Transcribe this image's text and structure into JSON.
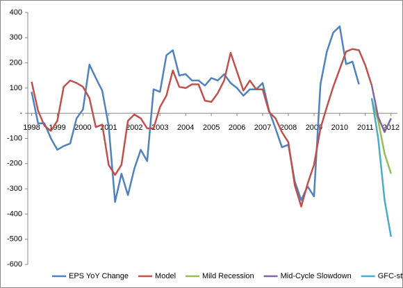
{
  "chart_data": {
    "type": "line",
    "x": [
      1998,
      1998.25,
      1998.5,
      1998.75,
      1999,
      1999.25,
      1999.5,
      1999.75,
      2000,
      2000.25,
      2000.5,
      2000.75,
      2001,
      2001.25,
      2001.5,
      2001.75,
      2002,
      2002.25,
      2002.5,
      2002.75,
      2003,
      2003.25,
      2003.5,
      2003.75,
      2004,
      2004.25,
      2004.5,
      2004.75,
      2005,
      2005.25,
      2005.5,
      2005.75,
      2006,
      2006.25,
      2006.5,
      2006.75,
      2007,
      2007.25,
      2007.5,
      2007.75,
      2008,
      2008.25,
      2008.5,
      2008.75,
      2009,
      2009.25,
      2009.5,
      2009.75,
      2010,
      2010.25,
      2010.5,
      2010.75,
      2011,
      2011.25,
      2011.5,
      2011.75,
      2012
    ],
    "series": [
      {
        "name": "EPS YoY Change",
        "color": "#4f81bd",
        "values": [
          85,
          -40,
          -40,
          -100,
          -145,
          -130,
          -120,
          -20,
          15,
          193,
          140,
          90,
          -50,
          -352,
          -240,
          -325,
          -220,
          -145,
          -190,
          95,
          85,
          230,
          250,
          150,
          155,
          130,
          130,
          110,
          140,
          130,
          155,
          120,
          100,
          70,
          95,
          95,
          120,
          10,
          -60,
          -135,
          -125,
          -270,
          -345,
          -290,
          -330,
          115,
          245,
          320,
          345,
          195,
          205,
          115,
          null,
          null,
          null,
          null,
          null
        ]
      },
      {
        "name": "Model",
        "color": "#c0504d",
        "values": [
          125,
          10,
          -50,
          -70,
          -30,
          105,
          130,
          120,
          105,
          60,
          -55,
          -45,
          -205,
          -245,
          -205,
          -30,
          -5,
          -20,
          -60,
          -60,
          25,
          70,
          170,
          105,
          100,
          115,
          115,
          50,
          45,
          80,
          130,
          240,
          165,
          90,
          130,
          95,
          95,
          5,
          -20,
          -75,
          -115,
          -285,
          -370,
          -280,
          -205,
          -60,
          25,
          105,
          175,
          245,
          255,
          250,
          190,
          110,
          null,
          null,
          null
        ]
      },
      {
        "name": "Mild Recession",
        "color": "#9bbb59",
        "values": [
          null,
          null,
          null,
          null,
          null,
          null,
          null,
          null,
          null,
          null,
          null,
          null,
          null,
          null,
          null,
          null,
          null,
          null,
          null,
          null,
          null,
          null,
          null,
          null,
          null,
          null,
          null,
          null,
          null,
          null,
          null,
          null,
          null,
          null,
          null,
          null,
          null,
          null,
          null,
          null,
          null,
          null,
          null,
          null,
          null,
          null,
          null,
          null,
          null,
          null,
          null,
          null,
          null,
          55,
          -30,
          -160,
          -240
        ]
      },
      {
        "name": "Mid-Cycle Slowdown",
        "color": "#8064a2",
        "values": [
          null,
          null,
          null,
          null,
          null,
          null,
          null,
          null,
          null,
          null,
          null,
          null,
          null,
          null,
          null,
          null,
          null,
          null,
          null,
          null,
          null,
          null,
          null,
          null,
          null,
          null,
          null,
          null,
          null,
          null,
          null,
          null,
          null,
          null,
          null,
          null,
          null,
          null,
          null,
          null,
          null,
          null,
          null,
          null,
          null,
          null,
          null,
          null,
          null,
          null,
          null,
          null,
          null,
          110,
          -15,
          -75,
          -20
        ]
      },
      {
        "name": "GFC-style Hard Landing",
        "color": "#4bacc6",
        "values": [
          null,
          null,
          null,
          null,
          null,
          null,
          null,
          null,
          null,
          null,
          null,
          null,
          null,
          null,
          null,
          null,
          null,
          null,
          null,
          null,
          null,
          null,
          null,
          null,
          null,
          null,
          null,
          null,
          null,
          null,
          null,
          null,
          null,
          null,
          null,
          null,
          null,
          null,
          null,
          null,
          null,
          null,
          null,
          null,
          null,
          null,
          null,
          null,
          null,
          null,
          null,
          null,
          null,
          60,
          -100,
          -345,
          -490
        ]
      }
    ],
    "xlim": [
      1997.85,
      2012.25
    ],
    "xticks": [
      1998,
      1999,
      2000,
      2001,
      2002,
      2003,
      2004,
      2005,
      2006,
      2007,
      2008,
      2009,
      2010,
      2011,
      2012
    ],
    "ylim": [
      -600,
      400
    ],
    "yticks": [
      -600,
      -500,
      -400,
      -300,
      -200,
      -100,
      {
        "value": 0,
        "label": "-"
      },
      100,
      200,
      300,
      400
    ],
    "grid": false,
    "legend": "bottom"
  }
}
